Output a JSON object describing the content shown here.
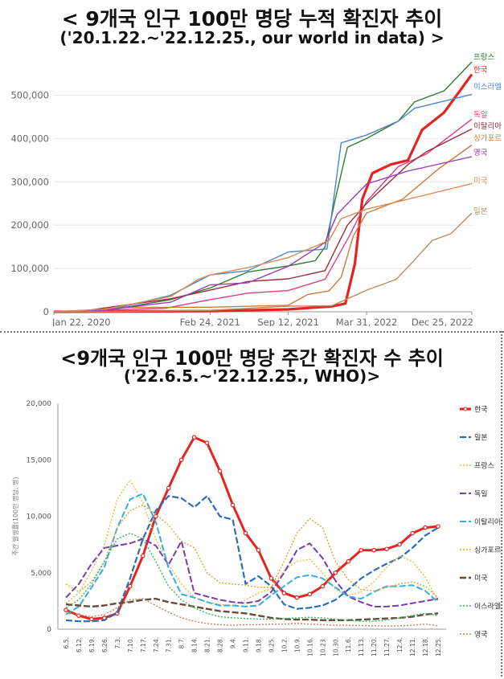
{
  "title1": {
    "line1": "< 9개국 인구 100만 명당 누적 확진자 추이",
    "line2": "('20.1.22.~'22.12.25., our world in data) >"
  },
  "title2": {
    "line1": "<9개국 인구 100만 명당 주간 확진자 수 추이",
    "line2": "('22.6.5.~'22.12.25., WHO)>"
  },
  "chart_data": [
    {
      "type": "line",
      "x_labels": [
        "Jan 22, 2020",
        "Feb 24, 2021",
        "Sep 12, 2021",
        "Mar 31, 2022",
        "Dec 25, 2022"
      ],
      "y_ticks": [
        "0",
        "100,000",
        "200,000",
        "300,000",
        "400,000",
        "500,000"
      ],
      "ylim": [
        0,
        590000
      ],
      "grid": true,
      "legend": "right-end-labels",
      "series": [
        {
          "name": "프랑스",
          "color": "#2e7d32",
          "width": 1.4,
          "points": [
            [
              "2020-01-22",
              0
            ],
            [
              "2020-06-01",
              2500
            ],
            [
              "2020-11-15",
              28000
            ],
            [
              "2021-02-24",
              55000
            ],
            [
              "2021-06-01",
              92000
            ],
            [
              "2021-09-12",
              106000
            ],
            [
              "2021-11-20",
              118000
            ],
            [
              "2021-12-15",
              150000
            ],
            [
              "2022-01-10",
              260000
            ],
            [
              "2022-02-10",
              380000
            ],
            [
              "2022-03-31",
              400000
            ],
            [
              "2022-06-20",
              440000
            ],
            [
              "2022-08-01",
              485000
            ],
            [
              "2022-10-15",
              510000
            ],
            [
              "2022-12-25",
              577000
            ]
          ]
        },
        {
          "name": "한국",
          "color": "#e52420",
          "width": 3.2,
          "points": [
            [
              "2020-01-22",
              0
            ],
            [
              "2020-06-01",
              300
            ],
            [
              "2021-02-24",
              1700
            ],
            [
              "2021-09-12",
              5500
            ],
            [
              "2021-12-31",
              12500
            ],
            [
              "2022-02-05",
              19000
            ],
            [
              "2022-03-01",
              110000
            ],
            [
              "2022-03-20",
              260000
            ],
            [
              "2022-04-15",
              320000
            ],
            [
              "2022-06-01",
              340000
            ],
            [
              "2022-07-15",
              350000
            ],
            [
              "2022-08-20",
              420000
            ],
            [
              "2022-10-15",
              460000
            ],
            [
              "2022-12-25",
              548000
            ]
          ]
        },
        {
          "name": "이스라엘",
          "color": "#4a86c8",
          "width": 1.4,
          "points": [
            [
              "2020-01-22",
              0
            ],
            [
              "2020-06-01",
              2000
            ],
            [
              "2020-11-15",
              38000
            ],
            [
              "2021-02-24",
              85000
            ],
            [
              "2021-06-01",
              95000
            ],
            [
              "2021-09-12",
              138000
            ],
            [
              "2021-12-20",
              145000
            ],
            [
              "2022-01-25",
              390000
            ],
            [
              "2022-03-31",
              408000
            ],
            [
              "2022-06-20",
              440000
            ],
            [
              "2022-08-01",
              470000
            ],
            [
              "2022-12-25",
              502000
            ]
          ]
        },
        {
          "name": "독일",
          "color": "#e0407f",
          "width": 1.4,
          "points": [
            [
              "2020-01-22",
              0
            ],
            [
              "2020-11-01",
              8000
            ],
            [
              "2021-02-24",
              28000
            ],
            [
              "2021-06-01",
              43000
            ],
            [
              "2021-09-12",
              49000
            ],
            [
              "2021-12-15",
              75000
            ],
            [
              "2022-02-15",
              175000
            ],
            [
              "2022-03-31",
              255000
            ],
            [
              "2022-06-20",
              335000
            ],
            [
              "2022-09-01",
              365000
            ],
            [
              "2022-12-25",
              445000
            ]
          ]
        },
        {
          "name": "이탈리아",
          "color": "#9a2c3c",
          "width": 1.4,
          "points": [
            [
              "2020-01-22",
              0
            ],
            [
              "2020-04-15",
              3000
            ],
            [
              "2020-11-15",
              30000
            ],
            [
              "2021-02-24",
              50000
            ],
            [
              "2021-06-01",
              70000
            ],
            [
              "2021-09-12",
              76000
            ],
            [
              "2021-12-15",
              95000
            ],
            [
              "2022-02-10",
              200000
            ],
            [
              "2022-03-31",
              250000
            ],
            [
              "2022-07-15",
              340000
            ],
            [
              "2022-09-01",
              370000
            ],
            [
              "2022-12-25",
              422000
            ]
          ]
        },
        {
          "name": "싱가포르",
          "color": "#cc7a3a",
          "width": 1.4,
          "points": [
            [
              "2020-01-22",
              0
            ],
            [
              "2020-05-15",
              5000
            ],
            [
              "2020-08-01",
              10000
            ],
            [
              "2021-02-24",
              10500
            ],
            [
              "2021-09-12",
              15000
            ],
            [
              "2021-11-01",
              40000
            ],
            [
              "2021-12-25",
              48000
            ],
            [
              "2022-01-25",
              80000
            ],
            [
              "2022-02-25",
              175000
            ],
            [
              "2022-03-31",
              228000
            ],
            [
              "2022-07-01",
              260000
            ],
            [
              "2022-10-01",
              330000
            ],
            [
              "2022-12-25",
              385000
            ]
          ]
        },
        {
          "name": "영국",
          "color": "#9c3cb4",
          "width": 1.4,
          "points": [
            [
              "2020-01-22",
              0
            ],
            [
              "2020-06-01",
              4000
            ],
            [
              "2020-11-15",
              22000
            ],
            [
              "2021-02-24",
              62000
            ],
            [
              "2021-06-01",
              67000
            ],
            [
              "2021-09-12",
              105000
            ],
            [
              "2021-12-15",
              160000
            ],
            [
              "2022-01-15",
              225000
            ],
            [
              "2022-03-31",
              295000
            ],
            [
              "2022-07-15",
              325000
            ],
            [
              "2022-12-25",
              358000
            ]
          ]
        },
        {
          "name": "미국",
          "color": "#dc8a52",
          "width": 1.4,
          "points": [
            [
              "2020-01-22",
              0
            ],
            [
              "2020-06-01",
              6000
            ],
            [
              "2020-11-15",
              35000
            ],
            [
              "2021-01-25",
              75000
            ],
            [
              "2021-02-24",
              85000
            ],
            [
              "2021-06-01",
              102000
            ],
            [
              "2021-09-12",
              125000
            ],
            [
              "2021-12-25",
              165000
            ],
            [
              "2022-01-25",
              215000
            ],
            [
              "2022-03-31",
              237000
            ],
            [
              "2022-07-15",
              260000
            ],
            [
              "2022-12-25",
              296000
            ]
          ]
        },
        {
          "name": "일본",
          "color": "#b8905e",
          "width": 1.4,
          "points": [
            [
              "2020-01-22",
              0
            ],
            [
              "2020-06-01",
              200
            ],
            [
              "2021-02-24",
              3300
            ],
            [
              "2021-09-12",
              13000
            ],
            [
              "2022-01-01",
              14000
            ],
            [
              "2022-02-15",
              32000
            ],
            [
              "2022-03-31",
              50000
            ],
            [
              "2022-06-15",
              75000
            ],
            [
              "2022-08-01",
              120000
            ],
            [
              "2022-09-15",
              165000
            ],
            [
              "2022-11-01",
              180000
            ],
            [
              "2022-12-25",
              228000
            ]
          ]
        }
      ]
    },
    {
      "type": "line",
      "categories": [
        "6.5.",
        "6.12.",
        "6.19.",
        "6.26.",
        "7.3.",
        "7.10.",
        "7.17.",
        "7.24.",
        "7.31.",
        "8.7.",
        "8.14.",
        "8.21.",
        "8.28.",
        "9.4.",
        "9.11.",
        "9.18.",
        "9.25.",
        "10.2.",
        "10.9.",
        "10.16.",
        "10.23.",
        "10.30.",
        "11.6.",
        "11.13.",
        "11.20.",
        "11.27.",
        "12.4.",
        "12.11.",
        "12.18.",
        "12.25."
      ],
      "y_ticks": [
        "0",
        "5,000",
        "10,000",
        "15,000",
        "20,000"
      ],
      "ylim": [
        0,
        20000
      ],
      "ylabel": "주간 발생률(100만 명당, 명)",
      "legend": "right",
      "series": [
        {
          "name": "한국",
          "color": "#e52420",
          "width": 3,
          "dash": "",
          "marker": true,
          "values": [
            1700,
            1200,
            900,
            1000,
            1400,
            3800,
            6500,
            10000,
            12500,
            15000,
            17000,
            16500,
            14000,
            11000,
            8500,
            7000,
            4500,
            3200,
            2800,
            3100,
            3800,
            5000,
            6000,
            7000,
            7000,
            7100,
            7500,
            8500,
            9000,
            9100
          ]
        },
        {
          "name": "일본",
          "color": "#2a6eb8",
          "width": 2.2,
          "dash": "8,3",
          "marker": false,
          "values": [
            800,
            700,
            700,
            800,
            1500,
            4500,
            8000,
            10500,
            11800,
            11600,
            10800,
            11800,
            10000,
            9700,
            4000,
            4700,
            3800,
            2200,
            1800,
            1900,
            2100,
            2600,
            3500,
            4500,
            5200,
            5800,
            6300,
            7200,
            8300,
            9000
          ]
        },
        {
          "name": "프랑스",
          "color": "#e6be3c",
          "width": 1.4,
          "dash": "2,2",
          "marker": false,
          "values": [
            2300,
            3200,
            5200,
            7500,
            11500,
            13200,
            11200,
            8000,
            5700,
            4000,
            2800,
            2400,
            2200,
            2100,
            2600,
            3200,
            3600,
            5200,
            6000,
            6200,
            5000,
            3500,
            3000,
            3300,
            4200,
            5500,
            6500,
            6000,
            4600,
            2500
          ]
        },
        {
          "name": "독일",
          "color": "#7a3bb0",
          "width": 2,
          "dash": "8,3",
          "marker": false,
          "values": [
            2800,
            4000,
            5800,
            7200,
            7400,
            7600,
            8000,
            7400,
            5700,
            7800,
            3200,
            2900,
            2600,
            2400,
            2300,
            2500,
            3300,
            5000,
            7000,
            7600,
            6300,
            4300,
            2900,
            2400,
            2000,
            2000,
            2100,
            2300,
            2500,
            2700
          ]
        },
        {
          "name": "이탈리아",
          "color": "#35aee0",
          "width": 2,
          "dash": "8,3",
          "marker": false,
          "values": [
            1300,
            2000,
            3700,
            5500,
            9000,
            11500,
            12000,
            9500,
            5400,
            3100,
            2800,
            2400,
            2100,
            2100,
            2000,
            2100,
            3000,
            3800,
            4600,
            4800,
            4500,
            3700,
            2900,
            2700,
            3300,
            3800,
            3800,
            3900,
            3400,
            2400
          ]
        },
        {
          "name": "싱가포르",
          "color": "#e8a030",
          "width": 1.4,
          "dash": "2,2",
          "marker": false,
          "values": [
            4000,
            3300,
            4200,
            6000,
            9000,
            10500,
            11000,
            10200,
            9200,
            7800,
            7200,
            5000,
            4100,
            4000,
            3900,
            3700,
            3700,
            6000,
            8500,
            9800,
            9000,
            6000,
            4400,
            3500,
            3400,
            3700,
            4000,
            4200,
            3800,
            2800
          ]
        },
        {
          "name": "미국",
          "color": "#6b4a3a",
          "width": 2.4,
          "dash": "8,3",
          "marker": false,
          "values": [
            2200,
            2100,
            2000,
            2100,
            2300,
            2400,
            2600,
            2700,
            2400,
            2200,
            2000,
            1800,
            1600,
            1500,
            1400,
            1200,
            1000,
            900,
            850,
            850,
            800,
            800,
            800,
            850,
            900,
            950,
            1000,
            1100,
            1300,
            1400
          ]
        },
        {
          "name": "이스라엘",
          "color": "#3ab45a",
          "width": 1.4,
          "dash": "2,2",
          "marker": false,
          "values": [
            1900,
            2600,
            4000,
            6000,
            8000,
            8500,
            8000,
            6000,
            3800,
            2600,
            1900,
            1400,
            1100,
            1000,
            950,
            900,
            900,
            950,
            1000,
            1050,
            1000,
            900,
            800,
            700,
            700,
            800,
            1000,
            1200,
            1400,
            1200
          ]
        },
        {
          "name": "영국",
          "color": "#c0855a",
          "width": 1.4,
          "dash": "2,2",
          "marker": false,
          "values": [
            1400,
            1300,
            1100,
            1300,
            1900,
            2600,
            2700,
            2100,
            1500,
            1000,
            700,
            500,
            400,
            350,
            400,
            400,
            450,
            450,
            500,
            450,
            400,
            350,
            350,
            320,
            300,
            280,
            300,
            350,
            450,
            300
          ]
        }
      ]
    }
  ]
}
